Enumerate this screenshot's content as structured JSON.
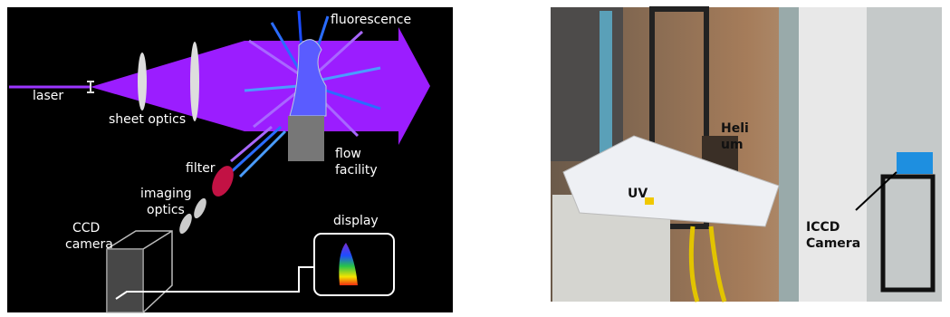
{
  "left_diagram": {
    "labels": {
      "laser": "laser",
      "sheet_optics": "sheet optics",
      "fluorescence": "fluorescence",
      "flow_facility": [
        "flow",
        "facility"
      ],
      "filter": "filter",
      "imaging_optics": [
        "imaging",
        "optics"
      ],
      "ccd_camera": [
        "CCD",
        "camera"
      ],
      "display": "display"
    }
  },
  "right_photo": {
    "labels": {
      "helium": [
        "Heli",
        "um"
      ],
      "uv": "UV",
      "iccd_camera": [
        "ICCD",
        "Camera"
      ]
    }
  }
}
